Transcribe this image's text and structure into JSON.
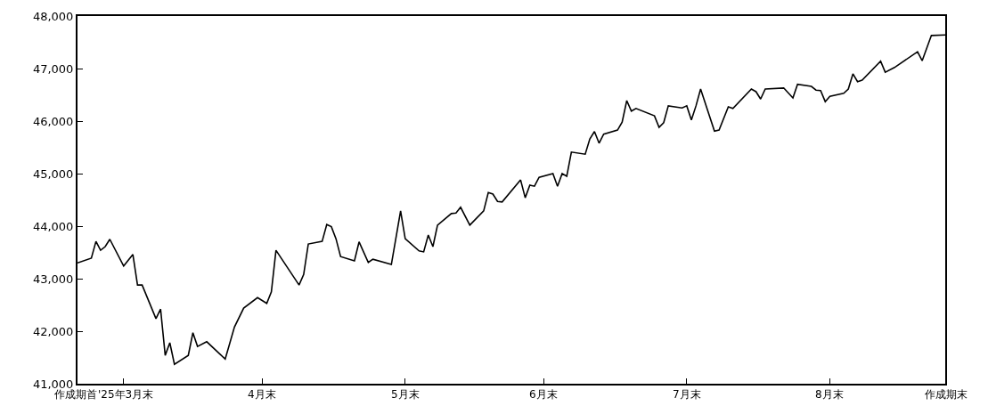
{
  "chart_data": {
    "type": "line",
    "x": [
      "2025-03-21",
      "2025-03-24",
      "2025-03-25",
      "2025-03-26",
      "2025-03-27",
      "2025-03-28",
      "2025-03-31",
      "2025-04-02",
      "2025-04-03",
      "2025-04-04",
      "2025-04-07",
      "2025-04-08",
      "2025-04-09",
      "2025-04-10",
      "2025-04-11",
      "2025-04-14",
      "2025-04-15",
      "2025-04-16",
      "2025-04-18",
      "2025-04-22",
      "2025-04-24",
      "2025-04-26",
      "2025-04-29",
      "2025-05-01",
      "2025-05-02",
      "2025-05-03",
      "2025-05-08",
      "2025-05-09",
      "2025-05-10",
      "2025-05-13",
      "2025-05-14",
      "2025-05-15",
      "2025-05-16",
      "2025-05-17",
      "2025-05-20",
      "2025-05-21",
      "2025-05-23",
      "2025-05-24",
      "2025-05-28",
      "2025-05-30",
      "2025-05-31",
      "2025-06-03",
      "2025-06-04",
      "2025-06-05",
      "2025-06-06",
      "2025-06-07",
      "2025-06-10",
      "2025-06-11",
      "2025-06-12",
      "2025-06-14",
      "2025-06-17",
      "2025-06-18",
      "2025-06-19",
      "2025-06-20",
      "2025-06-21",
      "2025-06-25",
      "2025-06-26",
      "2025-06-27",
      "2025-06-28",
      "2025-06-29",
      "2025-07-02",
      "2025-07-03",
      "2025-07-04",
      "2025-07-05",
      "2025-07-06",
      "2025-07-09",
      "2025-07-10",
      "2025-07-11",
      "2025-07-12",
      "2025-07-13",
      "2025-07-16",
      "2025-07-17",
      "2025-07-18",
      "2025-07-19",
      "2025-07-20",
      "2025-07-24",
      "2025-07-25",
      "2025-07-26",
      "2025-07-27",
      "2025-07-30",
      "2025-07-31",
      "2025-08-01",
      "2025-08-02",
      "2025-08-03",
      "2025-08-06",
      "2025-08-07",
      "2025-08-09",
      "2025-08-10",
      "2025-08-14",
      "2025-08-15",
      "2025-08-16",
      "2025-08-17",
      "2025-08-21",
      "2025-08-23",
      "2025-08-24",
      "2025-08-27",
      "2025-08-28",
      "2025-08-29",
      "2025-08-30",
      "2025-08-31",
      "2025-09-03",
      "2025-09-04",
      "2025-09-05",
      "2025-09-06",
      "2025-09-07",
      "2025-09-11",
      "2025-09-12",
      "2025-09-14",
      "2025-09-19",
      "2025-09-20",
      "2025-09-22",
      "2025-09-25"
    ],
    "series": [
      {
        "color": "#000000",
        "values": [
          43300,
          43390,
          43710,
          43540,
          43610,
          43750,
          43240,
          43460,
          42880,
          42880,
          42240,
          42420,
          41540,
          41780,
          41370,
          41540,
          41970,
          41710,
          41800,
          41470,
          42080,
          42440,
          42640,
          42530,
          42750,
          43540,
          42880,
          43080,
          43660,
          43710,
          44030,
          43990,
          43760,
          43420,
          43340,
          43700,
          43310,
          43370,
          43270,
          44290,
          43760,
          43530,
          43510,
          43830,
          43610,
          44020,
          44240,
          44250,
          44360,
          44020,
          44290,
          44640,
          44610,
          44470,
          44460,
          44880,
          44540,
          44780,
          44760,
          44930,
          45000,
          44760,
          45000,
          44950,
          45410,
          45370,
          45660,
          45800,
          45580,
          45750,
          45830,
          45980,
          46390,
          46190,
          46240,
          46100,
          45880,
          45970,
          46290,
          46250,
          46290,
          46020,
          46290,
          46610,
          45810,
          45830,
          46270,
          46240,
          46610,
          46560,
          46420,
          46610,
          46630,
          46440,
          46700,
          46660,
          46590,
          46580,
          46370,
          46470,
          46530,
          46610,
          46900,
          46750,
          46780,
          47140,
          46930,
          47020,
          47320,
          47150,
          47630,
          47640
        ]
      }
    ],
    "xlim": [
      "2025-03-21",
      "2025-09-25"
    ],
    "xticks": [
      {
        "value": "2025-03-21",
        "label": "作成期首"
      },
      {
        "value": "2025-03-31",
        "label": "'25年3月末"
      },
      {
        "value": "2025-04-30",
        "label": "4月末"
      },
      {
        "value": "2025-05-31",
        "label": "5月末"
      },
      {
        "value": "2025-06-30",
        "label": "6月末"
      },
      {
        "value": "2025-07-31",
        "label": "7月末"
      },
      {
        "value": "2025-08-31",
        "label": "8月末"
      },
      {
        "value": "2025-09-25",
        "label": "作成期末"
      }
    ],
    "ylim": [
      41000,
      48000
    ],
    "yticks": [
      {
        "value": 41000,
        "label": "41,000"
      },
      {
        "value": 42000,
        "label": "42,000"
      },
      {
        "value": 43000,
        "label": "43,000"
      },
      {
        "value": 44000,
        "label": "44,000"
      },
      {
        "value": 45000,
        "label": "45,000"
      },
      {
        "value": 46000,
        "label": "46,000"
      },
      {
        "value": 47000,
        "label": "47,000"
      },
      {
        "value": 48000,
        "label": "48,000"
      }
    ],
    "grid": false,
    "legend": false,
    "marker": "none",
    "line_style": "solid"
  }
}
